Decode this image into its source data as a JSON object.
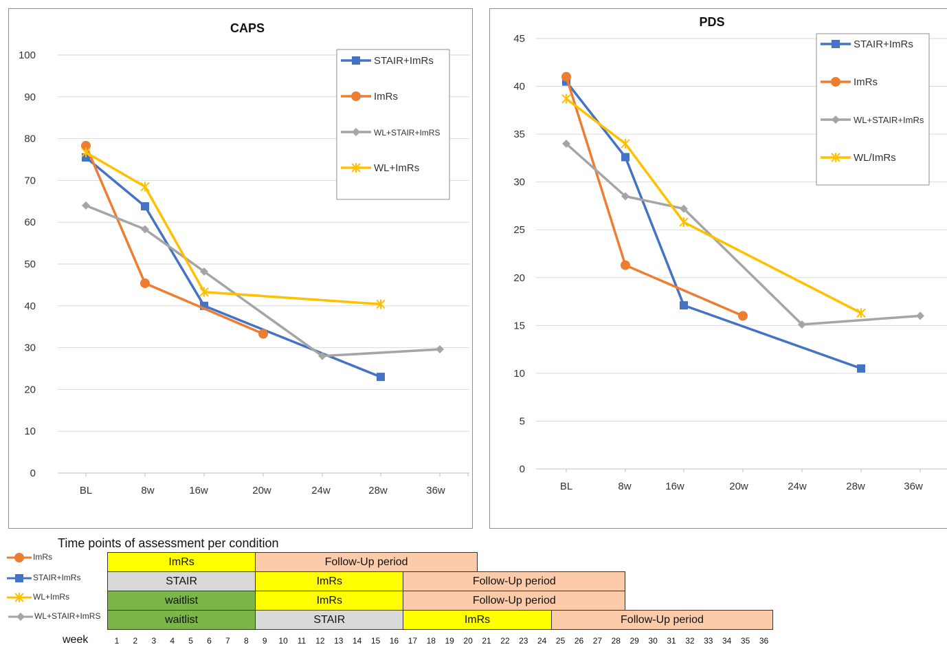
{
  "chart_data": [
    {
      "type": "line",
      "title": "CAPS",
      "categories": [
        "BL",
        "8w",
        "16w",
        "20w",
        "24w",
        "28w",
        "36w"
      ],
      "ylim": [
        0,
        100
      ],
      "yticks": [
        0,
        10,
        20,
        30,
        40,
        50,
        60,
        70,
        80,
        90,
        100
      ],
      "grid": true,
      "legend_position": "top-right",
      "series": [
        {
          "name": "STAIR+ImRs",
          "color": "#4472C4",
          "marker": "square",
          "values": [
            75.5,
            63.8,
            40,
            null,
            null,
            23,
            null
          ]
        },
        {
          "name": "ImRs",
          "color": "#ED7D31",
          "marker": "circle",
          "values": [
            78.3,
            45.4,
            null,
            33.3,
            null,
            null,
            null
          ]
        },
        {
          "name": "WL+STAIR+ImRS",
          "color": "#A5A5A5",
          "marker": "diamond",
          "values": [
            64,
            58.3,
            48.2,
            null,
            28,
            null,
            29.6
          ]
        },
        {
          "name": "WL+ImRs",
          "color": "#FFC000",
          "marker": "star",
          "values": [
            76.7,
            68.5,
            43.3,
            null,
            null,
            40.4,
            null
          ]
        }
      ]
    },
    {
      "type": "line",
      "title": "PDS",
      "categories": [
        "BL",
        "8w",
        "16w",
        "20w",
        "24w",
        "28w",
        "36w"
      ],
      "ylim": [
        0,
        45
      ],
      "yticks": [
        0,
        5,
        10,
        15,
        20,
        25,
        30,
        35,
        40,
        45
      ],
      "grid": true,
      "legend_position": "top-right",
      "series": [
        {
          "name": "STAIR+ImRs",
          "color": "#4472C4",
          "marker": "square",
          "values": [
            40.5,
            32.6,
            17.1,
            null,
            null,
            10.5,
            null
          ]
        },
        {
          "name": "ImRs",
          "color": "#ED7D31",
          "marker": "circle",
          "values": [
            41,
            21.3,
            null,
            16,
            null,
            null,
            null
          ]
        },
        {
          "name": "WL+STAIR+ImRs",
          "color": "#A5A5A5",
          "marker": "diamond",
          "values": [
            34,
            28.5,
            27.2,
            null,
            15.1,
            null,
            16
          ]
        },
        {
          "name": "WL/ImRs",
          "color": "#FFC000",
          "marker": "star",
          "values": [
            38.7,
            34,
            25.8,
            null,
            null,
            16.3,
            null
          ]
        }
      ]
    }
  ],
  "timeline": {
    "title": "Time points of assessment per condition",
    "week_label": "week",
    "weeks": [
      "1",
      "2",
      "3",
      "4",
      "5",
      "6",
      "7",
      "8",
      "9",
      "10",
      "11",
      "12",
      "13",
      "14",
      "15",
      "16",
      "17",
      "18",
      "19",
      "20",
      "21",
      "22",
      "23",
      "24",
      "25",
      "26",
      "27",
      "28",
      "29",
      "30",
      "31",
      "32",
      "33",
      "34",
      "35",
      "36"
    ],
    "rows": [
      {
        "legend": "ImRs",
        "color": "#ED7D31",
        "marker": "circle",
        "segments": [
          {
            "label": "ImRs",
            "start": 1,
            "end": 8,
            "fill": "#FFFF00"
          },
          {
            "label": "Follow-Up period",
            "start": 9,
            "end": 20,
            "fill": "#FBCBAA"
          }
        ]
      },
      {
        "legend": "STAIR+ImRs",
        "color": "#4472C4",
        "marker": "square",
        "segments": [
          {
            "label": "STAIR",
            "start": 1,
            "end": 8,
            "fill": "#D9D9D9"
          },
          {
            "label": "ImRs",
            "start": 9,
            "end": 16,
            "fill": "#FFFF00"
          },
          {
            "label": "Follow-Up period",
            "start": 17,
            "end": 28,
            "fill": "#FBCBAA"
          }
        ]
      },
      {
        "legend": "WL+ImRs",
        "color": "#FFC000",
        "marker": "star",
        "segments": [
          {
            "label": "waitlist",
            "start": 1,
            "end": 8,
            "fill": "#7AB648"
          },
          {
            "label": "ImRs",
            "start": 9,
            "end": 16,
            "fill": "#FFFF00"
          },
          {
            "label": "Follow-Up period",
            "start": 17,
            "end": 28,
            "fill": "#FBCBAA"
          }
        ]
      },
      {
        "legend": "WL+STAIR+ImRS",
        "color": "#A5A5A5",
        "marker": "diamond",
        "segments": [
          {
            "label": "waitlist",
            "start": 1,
            "end": 8,
            "fill": "#7AB648"
          },
          {
            "label": "STAIR",
            "start": 9,
            "end": 16,
            "fill": "#D9D9D9"
          },
          {
            "label": "ImRs",
            "start": 17,
            "end": 24,
            "fill": "#FFFF00"
          },
          {
            "label": "Follow-Up period",
            "start": 25,
            "end": 36,
            "fill": "#FBCBAA"
          }
        ]
      }
    ]
  }
}
